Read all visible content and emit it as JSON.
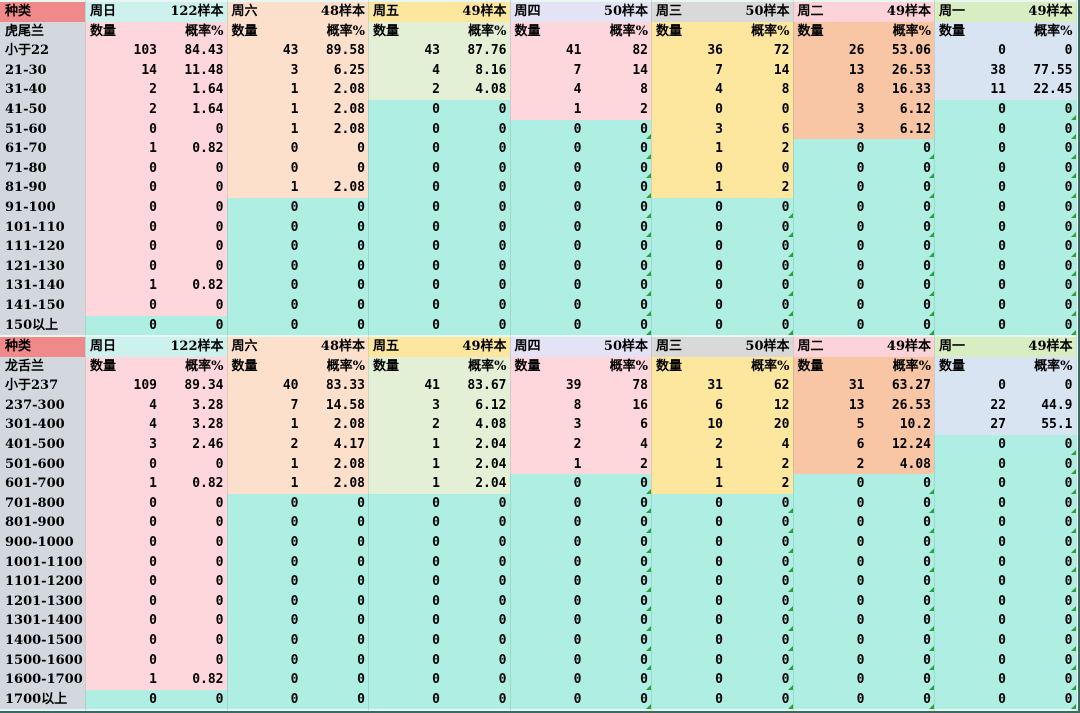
{
  "colors": {
    "teal": "#aeeee3",
    "label_col": "#d3d8de",
    "header_corner": "#f08a8a",
    "day_header": [
      "#cdf1ec",
      "#fde0cc",
      "#fde69e",
      "#e3e3f5",
      "#d9d9d9",
      "#fbd3d8",
      "#d9edc3"
    ],
    "day_body": [
      "#fdd7dc",
      "#fde0cc",
      "#e3f0d6",
      "#fdd7dc",
      "#fde69e",
      "#f8c6a4",
      "#d8e4f1"
    ]
  },
  "sections": [
    {
      "species_header": "种类",
      "species_name": "虎尾兰",
      "days": [
        {
          "name": "周日",
          "samples": "122样本"
        },
        {
          "name": "周六",
          "samples": "48样本"
        },
        {
          "name": "周五",
          "samples": "49样本"
        },
        {
          "name": "周四",
          "samples": "50样本"
        },
        {
          "name": "周三",
          "samples": "50样本"
        },
        {
          "name": "周二",
          "samples": "49样本"
        },
        {
          "name": "周一",
          "samples": "49样本"
        }
      ],
      "count_label": "数量",
      "rate_label": "概率%",
      "rows": [
        {
          "range": "小于22",
          "vals": [
            [
              "103",
              "84.43"
            ],
            [
              "43",
              "89.58"
            ],
            [
              "43",
              "87.76"
            ],
            [
              "41",
              "82"
            ],
            [
              "36",
              "72"
            ],
            [
              "26",
              "53.06"
            ],
            [
              "0",
              "0"
            ]
          ]
        },
        {
          "range": "21-30",
          "vals": [
            [
              "14",
              "11.48"
            ],
            [
              "3",
              "6.25"
            ],
            [
              "4",
              "8.16"
            ],
            [
              "7",
              "14"
            ],
            [
              "7",
              "14"
            ],
            [
              "13",
              "26.53"
            ],
            [
              "38",
              "77.55"
            ]
          ]
        },
        {
          "range": "31-40",
          "vals": [
            [
              "2",
              "1.64"
            ],
            [
              "1",
              "2.08"
            ],
            [
              "2",
              "4.08"
            ],
            [
              "4",
              "8"
            ],
            [
              "4",
              "8"
            ],
            [
              "8",
              "16.33"
            ],
            [
              "11",
              "22.45"
            ]
          ]
        },
        {
          "range": "41-50",
          "vals": [
            [
              "2",
              "1.64"
            ],
            [
              "1",
              "2.08"
            ],
            [
              "0",
              "0"
            ],
            [
              "1",
              "2"
            ],
            [
              "0",
              "0"
            ],
            [
              "3",
              "6.12"
            ],
            [
              "0",
              "0"
            ]
          ]
        },
        {
          "range": "51-60",
          "vals": [
            [
              "0",
              "0"
            ],
            [
              "1",
              "2.08"
            ],
            [
              "0",
              "0"
            ],
            [
              "0",
              "0"
            ],
            [
              "3",
              "6"
            ],
            [
              "3",
              "6.12"
            ],
            [
              "0",
              "0"
            ]
          ]
        },
        {
          "range": "61-70",
          "vals": [
            [
              "1",
              "0.82"
            ],
            [
              "0",
              "0"
            ],
            [
              "0",
              "0"
            ],
            [
              "0",
              "0"
            ],
            [
              "1",
              "2"
            ],
            [
              "0",
              "0"
            ],
            [
              "0",
              "0"
            ]
          ]
        },
        {
          "range": "71-80",
          "vals": [
            [
              "0",
              "0"
            ],
            [
              "0",
              "0"
            ],
            [
              "0",
              "0"
            ],
            [
              "0",
              "0"
            ],
            [
              "0",
              "0"
            ],
            [
              "0",
              "0"
            ],
            [
              "0",
              "0"
            ]
          ]
        },
        {
          "range": "81-90",
          "vals": [
            [
              "0",
              "0"
            ],
            [
              "1",
              "2.08"
            ],
            [
              "0",
              "0"
            ],
            [
              "0",
              "0"
            ],
            [
              "1",
              "2"
            ],
            [
              "0",
              "0"
            ],
            [
              "0",
              "0"
            ]
          ]
        },
        {
          "range": "91-100",
          "vals": [
            [
              "0",
              "0"
            ],
            [
              "0",
              "0"
            ],
            [
              "0",
              "0"
            ],
            [
              "0",
              "0"
            ],
            [
              "0",
              "0"
            ],
            [
              "0",
              "0"
            ],
            [
              "0",
              "0"
            ]
          ]
        },
        {
          "range": "101-110",
          "vals": [
            [
              "0",
              "0"
            ],
            [
              "0",
              "0"
            ],
            [
              "0",
              "0"
            ],
            [
              "0",
              "0"
            ],
            [
              "0",
              "0"
            ],
            [
              "0",
              "0"
            ],
            [
              "0",
              "0"
            ]
          ]
        },
        {
          "range": "111-120",
          "vals": [
            [
              "0",
              "0"
            ],
            [
              "0",
              "0"
            ],
            [
              "0",
              "0"
            ],
            [
              "0",
              "0"
            ],
            [
              "0",
              "0"
            ],
            [
              "0",
              "0"
            ],
            [
              "0",
              "0"
            ]
          ]
        },
        {
          "range": "121-130",
          "vals": [
            [
              "0",
              "0"
            ],
            [
              "0",
              "0"
            ],
            [
              "0",
              "0"
            ],
            [
              "0",
              "0"
            ],
            [
              "0",
              "0"
            ],
            [
              "0",
              "0"
            ],
            [
              "0",
              "0"
            ]
          ]
        },
        {
          "range": "131-140",
          "vals": [
            [
              "1",
              "0.82"
            ],
            [
              "0",
              "0"
            ],
            [
              "0",
              "0"
            ],
            [
              "0",
              "0"
            ],
            [
              "0",
              "0"
            ],
            [
              "0",
              "0"
            ],
            [
              "0",
              "0"
            ]
          ]
        },
        {
          "range": "141-150",
          "vals": [
            [
              "0",
              "0"
            ],
            [
              "0",
              "0"
            ],
            [
              "0",
              "0"
            ],
            [
              "0",
              "0"
            ],
            [
              "0",
              "0"
            ],
            [
              "0",
              "0"
            ],
            [
              "0",
              "0"
            ]
          ]
        },
        {
          "range": "150以上",
          "vals": [
            [
              "0",
              "0"
            ],
            [
              "0",
              "0"
            ],
            [
              "0",
              "0"
            ],
            [
              "0",
              "0"
            ],
            [
              "0",
              "0"
            ],
            [
              "0",
              "0"
            ],
            [
              "0",
              "0"
            ]
          ]
        }
      ],
      "colored_rows": [
        14,
        8,
        3,
        4,
        8,
        5,
        3
      ]
    },
    {
      "species_header": "种类",
      "species_name": "龙舌兰",
      "days": [
        {
          "name": "周日",
          "samples": "122样本"
        },
        {
          "name": "周六",
          "samples": "48样本"
        },
        {
          "name": "周五",
          "samples": "49样本"
        },
        {
          "name": "周四",
          "samples": "50样本"
        },
        {
          "name": "周三",
          "samples": "50样本"
        },
        {
          "name": "周二",
          "samples": "49样本"
        },
        {
          "name": "周一",
          "samples": "49样本"
        }
      ],
      "count_label": "数量",
      "rate_label": "概率%",
      "rows": [
        {
          "range": "小于237",
          "vals": [
            [
              "109",
              "89.34"
            ],
            [
              "40",
              "83.33"
            ],
            [
              "41",
              "83.67"
            ],
            [
              "39",
              "78"
            ],
            [
              "31",
              "62"
            ],
            [
              "31",
              "63.27"
            ],
            [
              "0",
              "0"
            ]
          ]
        },
        {
          "range": "237-300",
          "vals": [
            [
              "4",
              "3.28"
            ],
            [
              "7",
              "14.58"
            ],
            [
              "3",
              "6.12"
            ],
            [
              "8",
              "16"
            ],
            [
              "6",
              "12"
            ],
            [
              "13",
              "26.53"
            ],
            [
              "22",
              "44.9"
            ]
          ]
        },
        {
          "range": "301-400",
          "vals": [
            [
              "4",
              "3.28"
            ],
            [
              "1",
              "2.08"
            ],
            [
              "2",
              "4.08"
            ],
            [
              "3",
              "6"
            ],
            [
              "10",
              "20"
            ],
            [
              "5",
              "10.2"
            ],
            [
              "27",
              "55.1"
            ]
          ]
        },
        {
          "range": "401-500",
          "vals": [
            [
              "3",
              "2.46"
            ],
            [
              "2",
              "4.17"
            ],
            [
              "1",
              "2.04"
            ],
            [
              "2",
              "4"
            ],
            [
              "2",
              "4"
            ],
            [
              "6",
              "12.24"
            ],
            [
              "0",
              "0"
            ]
          ]
        },
        {
          "range": "501-600",
          "vals": [
            [
              "0",
              "0"
            ],
            [
              "1",
              "2.08"
            ],
            [
              "1",
              "2.04"
            ],
            [
              "1",
              "2"
            ],
            [
              "1",
              "2"
            ],
            [
              "2",
              "4.08"
            ],
            [
              "0",
              "0"
            ]
          ]
        },
        {
          "range": "601-700",
          "vals": [
            [
              "1",
              "0.82"
            ],
            [
              "1",
              "2.08"
            ],
            [
              "1",
              "2.04"
            ],
            [
              "0",
              "0"
            ],
            [
              "1",
              "2"
            ],
            [
              "0",
              "0"
            ],
            [
              "0",
              "0"
            ]
          ]
        },
        {
          "range": "701-800",
          "vals": [
            [
              "0",
              "0"
            ],
            [
              "0",
              "0"
            ],
            [
              "0",
              "0"
            ],
            [
              "0",
              "0"
            ],
            [
              "0",
              "0"
            ],
            [
              "0",
              "0"
            ],
            [
              "0",
              "0"
            ]
          ]
        },
        {
          "range": "801-900",
          "vals": [
            [
              "0",
              "0"
            ],
            [
              "0",
              "0"
            ],
            [
              "0",
              "0"
            ],
            [
              "0",
              "0"
            ],
            [
              "0",
              "0"
            ],
            [
              "0",
              "0"
            ],
            [
              "0",
              "0"
            ]
          ]
        },
        {
          "range": "900-1000",
          "vals": [
            [
              "0",
              "0"
            ],
            [
              "0",
              "0"
            ],
            [
              "0",
              "0"
            ],
            [
              "0",
              "0"
            ],
            [
              "0",
              "0"
            ],
            [
              "0",
              "0"
            ],
            [
              "0",
              "0"
            ]
          ]
        },
        {
          "range": "1001-1100",
          "vals": [
            [
              "0",
              "0"
            ],
            [
              "0",
              "0"
            ],
            [
              "0",
              "0"
            ],
            [
              "0",
              "0"
            ],
            [
              "0",
              "0"
            ],
            [
              "0",
              "0"
            ],
            [
              "0",
              "0"
            ]
          ]
        },
        {
          "range": "1101-1200",
          "vals": [
            [
              "0",
              "0"
            ],
            [
              "0",
              "0"
            ],
            [
              "0",
              "0"
            ],
            [
              "0",
              "0"
            ],
            [
              "0",
              "0"
            ],
            [
              "0",
              "0"
            ],
            [
              "0",
              "0"
            ]
          ]
        },
        {
          "range": "1201-1300",
          "vals": [
            [
              "0",
              "0"
            ],
            [
              "0",
              "0"
            ],
            [
              "0",
              "0"
            ],
            [
              "0",
              "0"
            ],
            [
              "0",
              "0"
            ],
            [
              "0",
              "0"
            ],
            [
              "0",
              "0"
            ]
          ]
        },
        {
          "range": "1301-1400",
          "vals": [
            [
              "0",
              "0"
            ],
            [
              "0",
              "0"
            ],
            [
              "0",
              "0"
            ],
            [
              "0",
              "0"
            ],
            [
              "0",
              "0"
            ],
            [
              "0",
              "0"
            ],
            [
              "0",
              "0"
            ]
          ]
        },
        {
          "range": "1400-1500",
          "vals": [
            [
              "0",
              "0"
            ],
            [
              "0",
              "0"
            ],
            [
              "0",
              "0"
            ],
            [
              "0",
              "0"
            ],
            [
              "0",
              "0"
            ],
            [
              "0",
              "0"
            ],
            [
              "0",
              "0"
            ]
          ]
        },
        {
          "range": "1500-1600",
          "vals": [
            [
              "0",
              "0"
            ],
            [
              "0",
              "0"
            ],
            [
              "0",
              "0"
            ],
            [
              "0",
              "0"
            ],
            [
              "0",
              "0"
            ],
            [
              "0",
              "0"
            ],
            [
              "0",
              "0"
            ]
          ]
        },
        {
          "range": "1600-1700",
          "vals": [
            [
              "1",
              "0.82"
            ],
            [
              "0",
              "0"
            ],
            [
              "0",
              "0"
            ],
            [
              "0",
              "0"
            ],
            [
              "0",
              "0"
            ],
            [
              "0",
              "0"
            ],
            [
              "0",
              "0"
            ]
          ]
        },
        {
          "range": "1700以上",
          "vals": [
            [
              "0",
              "0"
            ],
            [
              "0",
              "0"
            ],
            [
              "0",
              "0"
            ],
            [
              "0",
              "0"
            ],
            [
              "0",
              "0"
            ],
            [
              "0",
              "0"
            ],
            [
              "0",
              "0"
            ]
          ]
        }
      ],
      "colored_rows": [
        16,
        6,
        6,
        5,
        6,
        5,
        3
      ]
    }
  ]
}
